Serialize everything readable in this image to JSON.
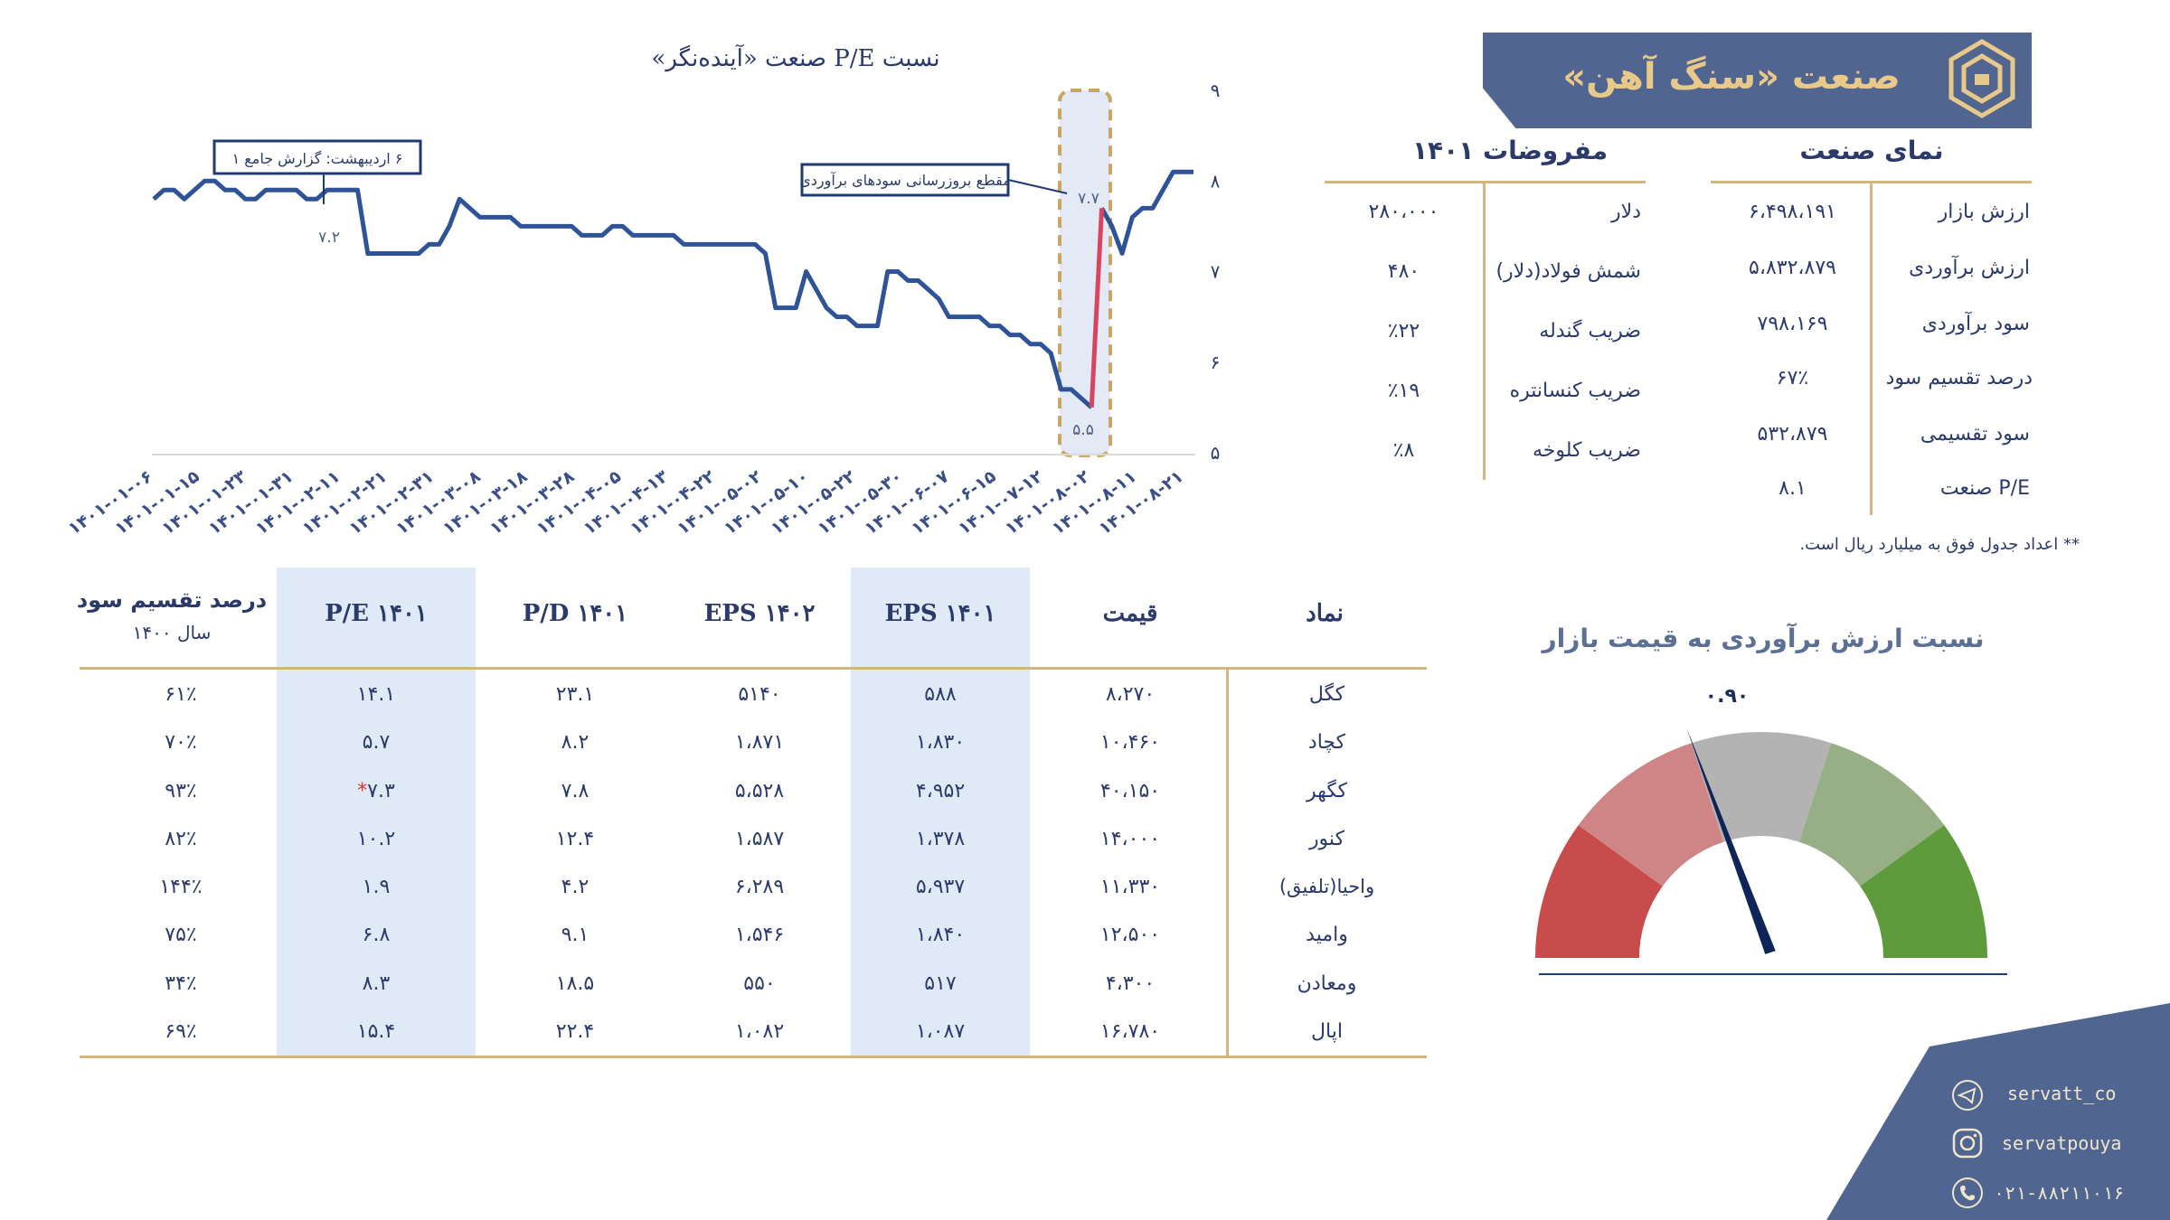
{
  "header": {
    "title": "صنعت «سنگ آهن»"
  },
  "industry_view": {
    "title": "نمای صنعت",
    "rows": [
      {
        "label": "ارزش بازار",
        "value": "۶،۴۹۸،۱۹۱"
      },
      {
        "label": "ارزش برآوردی",
        "value": "۵،۸۳۲،۸۷۹"
      },
      {
        "label": "سود برآوردی",
        "value": "۷۹۸،۱۶۹"
      },
      {
        "label": "درصد تقسیم سود",
        "value": "۶۷٪"
      },
      {
        "label": "سود تقسیمی",
        "value": "۵۳۲،۸۷۹"
      },
      {
        "label": "P/E صنعت",
        "value": "۸.۱"
      }
    ]
  },
  "assumptions": {
    "title": "مفروضات ۱۴۰۱",
    "rows": [
      {
        "label": "دلار",
        "value": "۲۸۰،۰۰۰"
      },
      {
        "label": "شمش فولاد(دلار)",
        "value": "۴۸۰"
      },
      {
        "label": "ضریب گندله",
        "value": "٪۲۲"
      },
      {
        "label": "ضریب کنسانتره",
        "value": "٪۱۹"
      },
      {
        "label": "ضریب کلوخه",
        "value": "٪۸"
      }
    ]
  },
  "note": "** اعداد جدول فوق به میلیارد ریال است.",
  "chart_data": {
    "type": "line",
    "title": "نسبت P/E صنعت «آینده‌نگر»",
    "ylim": [
      5,
      9
    ],
    "yticks": [
      "۵",
      "۶",
      "۷",
      "۸",
      "۹"
    ],
    "xticks": [
      "۱۴۰۱-۰۱-۰۶",
      "۱۴۰۱-۰۱-۱۵",
      "۱۴۰۱-۰۱-۲۳",
      "۱۴۰۱-۰۱-۳۱",
      "۱۴۰۱-۰۲-۱۱",
      "۱۴۰۱-۰۲-۲۱",
      "۱۴۰۱-۰۲-۳۱",
      "۱۴۰۱-۰۳-۰۸",
      "۱۴۰۱-۰۳-۱۸",
      "۱۴۰۱-۰۳-۲۸",
      "۱۴۰۱-۰۴-۰۵",
      "۱۴۰۱-۰۴-۱۳",
      "۱۴۰۱-۰۴-۲۲",
      "۱۴۰۱-۰۵-۰۲",
      "۱۴۰۱-۰۵-۱۰",
      "۱۴۰۱-۰۵-۲۲",
      "۱۴۰۱-۰۵-۳۰",
      "۱۴۰۱-۰۶-۰۷",
      "۱۴۰۱-۰۶-۱۵",
      "۱۴۰۱-۰۷-۱۲",
      "۱۴۰۱-۰۸-۰۲",
      "۱۴۰۱-۰۸-۱۱",
      "۱۴۰۱-۰۸-۲۱"
    ],
    "series": [
      {
        "color": "#2e5497",
        "values": [
          7.8,
          7.9,
          7.9,
          7.8,
          7.9,
          8.0,
          8.0,
          7.9,
          7.9,
          7.8,
          7.8,
          7.9,
          7.9,
          7.9,
          7.9,
          7.8,
          7.8,
          7.9,
          7.9,
          7.9,
          7.9,
          7.2,
          7.2,
          7.2,
          7.2,
          7.2,
          7.2,
          7.3,
          7.3,
          7.5,
          7.8,
          7.7,
          7.6,
          7.6,
          7.6,
          7.6,
          7.5,
          7.5,
          7.5,
          7.5,
          7.5,
          7.5,
          7.4,
          7.4,
          7.4,
          7.5,
          7.5,
          7.4,
          7.4,
          7.4,
          7.4,
          7.4,
          7.3,
          7.3,
          7.3,
          7.3,
          7.3,
          7.3,
          7.3,
          7.3,
          7.2,
          6.6,
          6.6,
          6.6,
          7.0,
          6.8,
          6.6,
          6.5,
          6.5,
          6.4,
          6.4,
          6.4,
          7.0,
          7.0,
          6.9,
          6.9,
          6.8,
          6.7,
          6.5,
          6.5,
          6.5,
          6.5,
          6.4,
          6.4,
          6.3,
          6.3,
          6.2,
          6.2,
          6.1,
          5.7,
          5.7,
          5.6,
          5.5,
          7.7,
          7.5,
          7.2,
          7.6,
          7.7,
          7.7,
          7.9,
          8.1,
          8.1,
          8.1
        ]
      },
      {
        "color": "#d9455f",
        "values": [
          5.5,
          7.7
        ]
      }
    ],
    "annotations": [
      {
        "text": "۶ اردیبهشت: گزارش جامع ۱"
      },
      {
        "text": "مقطع بروزرسانی سودهای برآوردی"
      },
      {
        "text": "۷.۲"
      },
      {
        "text": "۷.۷"
      },
      {
        "text": "۵.۵"
      }
    ]
  },
  "table": {
    "headers": {
      "symbol": "نماد",
      "price": "قیمت",
      "eps1401": "EPS ۱۴۰۱",
      "eps1402": "EPS ۱۴۰۲",
      "pd1401": "P/D ۱۴۰۱",
      "pe1401": "P/E ۱۴۰۱",
      "dps_line1": "درصد تقسیم سود",
      "dps_line2": "سال ۱۴۰۰"
    },
    "rows": [
      {
        "symbol": "کگل",
        "price": "۸،۲۷۰",
        "eps1401": "۵۸۸",
        "eps1402": "۵۱۴۰",
        "pd1401": "۲۳.۱",
        "pe1401": "۱۴.۱",
        "dps": "۶۱٪"
      },
      {
        "symbol": "کچاد",
        "price": "۱۰،۴۶۰",
        "eps1401": "۱،۸۳۰",
        "eps1402": "۱،۸۷۱",
        "pd1401": "۸.۲",
        "pe1401": "۵.۷",
        "dps": "۷۰٪"
      },
      {
        "symbol": "کگهر",
        "price": "۴۰،۱۵۰",
        "eps1401": "۴،۹۵۲",
        "eps1402": "۵،۵۲۸",
        "pd1401": "۷.۸",
        "pe1401": "۷.۳",
        "dps": "۹۳٪",
        "star": "*"
      },
      {
        "symbol": "کنور",
        "price": "۱۴،۰۰۰",
        "eps1401": "۱،۳۷۸",
        "eps1402": "۱،۵۸۷",
        "pd1401": "۱۲.۴",
        "pe1401": "۱۰.۲",
        "dps": "۸۲٪"
      },
      {
        "symbol": "واحیا(تلفیق)",
        "price": "۱۱،۳۳۰",
        "eps1401": "۵،۹۳۷",
        "eps1402": "۶،۲۸۹",
        "pd1401": "۴.۲",
        "pe1401": "۱.۹",
        "dps": "۱۴۴٪"
      },
      {
        "symbol": "وامید",
        "price": "۱۲،۵۰۰",
        "eps1401": "۱،۸۴۰",
        "eps1402": "۱،۵۴۶",
        "pd1401": "۹.۱",
        "pe1401": "۶.۸",
        "dps": "۷۵٪"
      },
      {
        "symbol": "ومعادن",
        "price": "۴،۳۰۰",
        "eps1401": "۵۱۷",
        "eps1402": "۵۵۰",
        "pd1401": "۱۸.۵",
        "pe1401": "۸.۳",
        "dps": "۳۴٪"
      },
      {
        "symbol": "اپال",
        "price": "۱۶،۷۸۰",
        "eps1401": "۱،۰۸۷",
        "eps1402": "۱،۰۸۲",
        "pd1401": "۲۲.۴",
        "pe1401": "۱۵.۴",
        "dps": "۶۹٪"
      }
    ]
  },
  "gauge": {
    "title": "نسبت ارزش برآوردی به قیمت بازار",
    "value_label": "۰.۹۰",
    "value": 0.9,
    "segment_colors": [
      "#c94c4c",
      "#cf8585",
      "#b3b3b3",
      "#98ae87",
      "#5f9b3c"
    ]
  },
  "social": {
    "telegram": "servatt_co",
    "instagram": "servatpouya",
    "phone": "۰۲۱-۸۸۲۱۱۰۱۶"
  }
}
